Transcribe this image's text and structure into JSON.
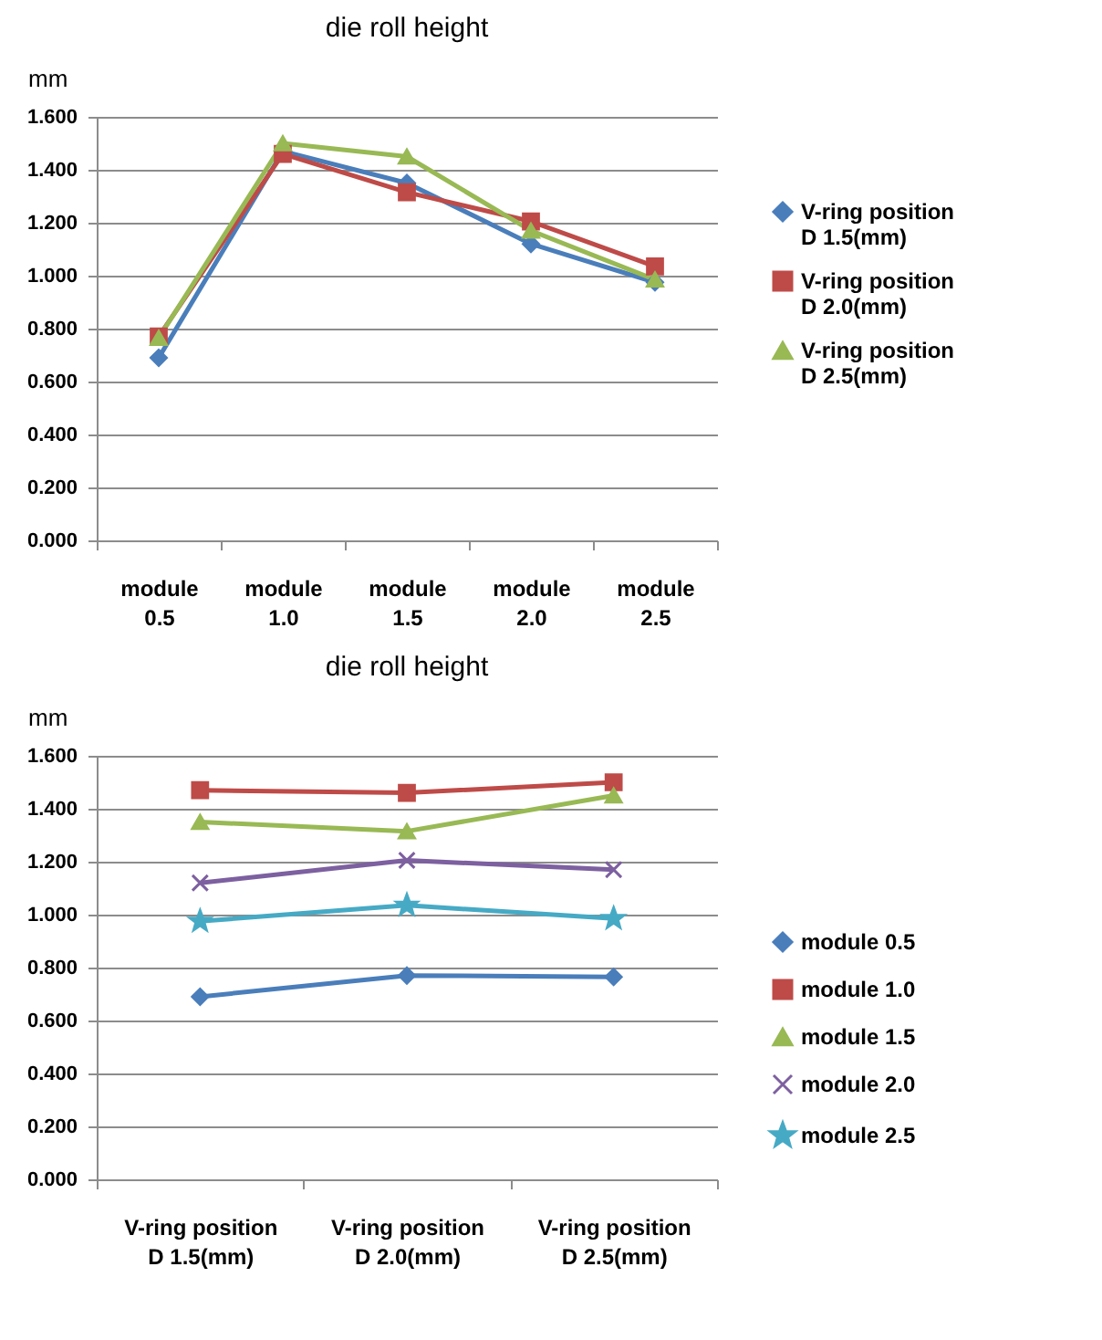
{
  "chart_data": [
    {
      "type": "line",
      "title": "die roll height",
      "ylabel": "mm",
      "categories": [
        "module 0.5",
        "module 1.0",
        "module 1.5",
        "module 2.0",
        "module 2.5"
      ],
      "series": [
        {
          "name": "V-ring position D 1.5(mm)",
          "color": "#4a7ebb",
          "marker": "diamond",
          "values": [
            0.69,
            1.47,
            1.35,
            1.12,
            0.975
          ]
        },
        {
          "name": "V-ring position D 2.0(mm)",
          "color": "#be4b48",
          "marker": "square",
          "values": [
            0.77,
            1.46,
            1.315,
            1.205,
            1.035
          ]
        },
        {
          "name": "V-ring position D 2.5(mm)",
          "color": "#98b954",
          "marker": "triangle",
          "values": [
            0.765,
            1.5,
            1.45,
            1.17,
            0.985
          ]
        }
      ],
      "ylim": [
        0,
        1.6
      ],
      "yticks": [
        {
          "value": 0,
          "label": "0.000"
        },
        {
          "value": 0.2,
          "label": "0.200"
        },
        {
          "value": 0.4,
          "label": "0.400"
        },
        {
          "value": 0.6,
          "label": "0.600"
        },
        {
          "value": 0.8,
          "label": "0.800"
        },
        {
          "value": 1,
          "label": "1.000"
        },
        {
          "value": 1.2,
          "label": "1.200"
        },
        {
          "value": 1.4,
          "label": "1.400"
        },
        {
          "value": 1.6,
          "label": "1.600"
        }
      ],
      "grid": "y",
      "legend": "right"
    },
    {
      "type": "line",
      "title": "die roll height",
      "ylabel": "mm",
      "categories": [
        "V-ring position D 1.5(mm)",
        "V-ring position D 2.0(mm)",
        "V-ring position D 2.5(mm)"
      ],
      "series": [
        {
          "name": "module 0.5",
          "color": "#4a7ebb",
          "marker": "diamond",
          "values": [
            0.69,
            0.77,
            0.765
          ]
        },
        {
          "name": "module 1.0",
          "color": "#be4b48",
          "marker": "square",
          "values": [
            1.47,
            1.46,
            1.5
          ]
        },
        {
          "name": "module 1.5",
          "color": "#98b954",
          "marker": "triangle",
          "values": [
            1.35,
            1.315,
            1.45
          ]
        },
        {
          "name": "module 2.0",
          "color": "#7d60a0",
          "marker": "cross",
          "values": [
            1.12,
            1.205,
            1.17
          ]
        },
        {
          "name": "module 2.5",
          "color": "#46aac5",
          "marker": "star",
          "values": [
            0.975,
            1.035,
            0.985
          ]
        }
      ],
      "ylim": [
        0,
        1.6
      ],
      "yticks": [
        {
          "value": 0,
          "label": "0.000"
        },
        {
          "value": 0.2,
          "label": "0.200"
        },
        {
          "value": 0.4,
          "label": "0.400"
        },
        {
          "value": 0.6,
          "label": "0.600"
        },
        {
          "value": 0.8,
          "label": "0.800"
        },
        {
          "value": 1,
          "label": "1.000"
        },
        {
          "value": 1.2,
          "label": "1.200"
        },
        {
          "value": 1.4,
          "label": "1.400"
        },
        {
          "value": 1.6,
          "label": "1.600"
        }
      ],
      "grid": "y",
      "legend": "right"
    }
  ]
}
